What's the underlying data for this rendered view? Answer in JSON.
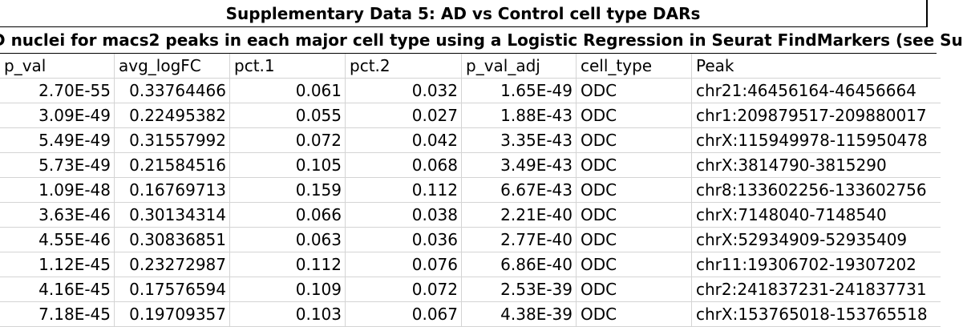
{
  "title": "Supplementary Data 5: AD vs Control cell type DARs",
  "subtitle": "D nuclei for macs2 peaks in each  major cell type using a Logistic Regression in Seurat FindMarkers (see Su",
  "columns": [
    "p_val",
    "avg_logFC",
    "pct.1",
    "pct.2",
    "p_val_adj",
    "cell_type",
    "Peak"
  ],
  "rows": [
    [
      "2.70E-55",
      "0.33764466",
      "0.061",
      "0.032",
      "1.65E-49",
      "ODC",
      "chr21:46456164-46456664"
    ],
    [
      "3.09E-49",
      "0.22495382",
      "0.055",
      "0.027",
      "1.88E-43",
      "ODC",
      "chr1:209879517-209880017"
    ],
    [
      "5.49E-49",
      "0.31557992",
      "0.072",
      "0.042",
      "3.35E-43",
      "ODC",
      "chrX:115949978-115950478"
    ],
    [
      "5.73E-49",
      "0.21584516",
      "0.105",
      "0.068",
      "3.49E-43",
      "ODC",
      "chrX:3814790-3815290"
    ],
    [
      "1.09E-48",
      "0.16769713",
      "0.159",
      "0.112",
      "6.67E-43",
      "ODC",
      "chr8:133602256-133602756"
    ],
    [
      "3.63E-46",
      "0.30134314",
      "0.066",
      "0.038",
      "2.21E-40",
      "ODC",
      "chrX:7148040-7148540"
    ],
    [
      "4.55E-46",
      "0.30836851",
      "0.063",
      "0.036",
      "2.77E-40",
      "ODC",
      "chrX:52934909-52935409"
    ],
    [
      "1.12E-45",
      "0.23272987",
      "0.112",
      "0.076",
      "6.86E-40",
      "ODC",
      "chr11:19306702-19307202"
    ],
    [
      "4.16E-45",
      "0.17576594",
      "0.109",
      "0.072",
      "2.53E-39",
      "ODC",
      "chr2:241837231-241837731"
    ],
    [
      "7.18E-45",
      "0.19709357",
      "0.103",
      "0.067",
      "4.38E-39",
      "ODC",
      "chrX:153765018-153765518"
    ]
  ]
}
